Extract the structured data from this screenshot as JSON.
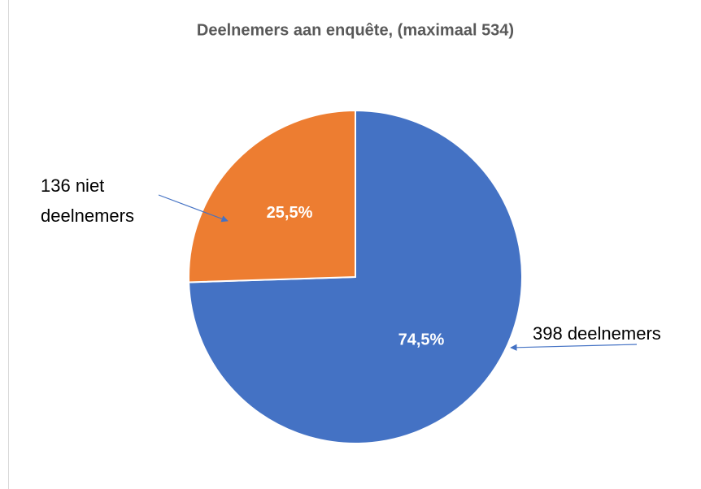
{
  "chart_data": {
    "type": "pie",
    "title": "Deelnemers aan enquête, (maximaal 534)",
    "categories": [
      "398 deelnemers",
      "136 niet deelnemers"
    ],
    "values": [
      74.5,
      25.5
    ],
    "value_labels": [
      "74,5%",
      "25,5%"
    ],
    "colors": [
      "#4472c4",
      "#ed7d31"
    ]
  }
}
